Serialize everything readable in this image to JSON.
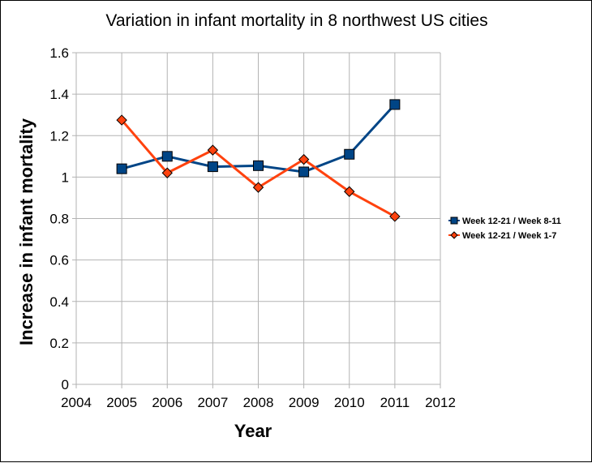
{
  "chart_data": {
    "type": "line",
    "title": "Variation in infant mortality in 8 northwest US cities",
    "xlabel": "Year",
    "ylabel": "Increase in infant mortality",
    "xlim": [
      2004,
      2012
    ],
    "ylim": [
      0,
      1.6
    ],
    "xticks": [
      2004,
      2005,
      2006,
      2007,
      2008,
      2009,
      2010,
      2011,
      2012
    ],
    "yticks": [
      0,
      0.2,
      0.4,
      0.6,
      0.8,
      1,
      1.2,
      1.4,
      1.6
    ],
    "grid": true,
    "legend_position": "right",
    "x": [
      2005,
      2006,
      2007,
      2008,
      2009,
      2010,
      2011
    ],
    "series": [
      {
        "name": "Week 12-21 / Week 8-11",
        "values": [
          1.04,
          1.1,
          1.05,
          1.055,
          1.025,
          1.11,
          1.35
        ],
        "color": "#004586",
        "marker": "square"
      },
      {
        "name": "Week 12-21 / Week 1-7",
        "values": [
          1.275,
          1.02,
          1.13,
          0.95,
          1.085,
          0.93,
          0.81
        ],
        "color": "#ff420e",
        "marker": "diamond"
      }
    ]
  }
}
